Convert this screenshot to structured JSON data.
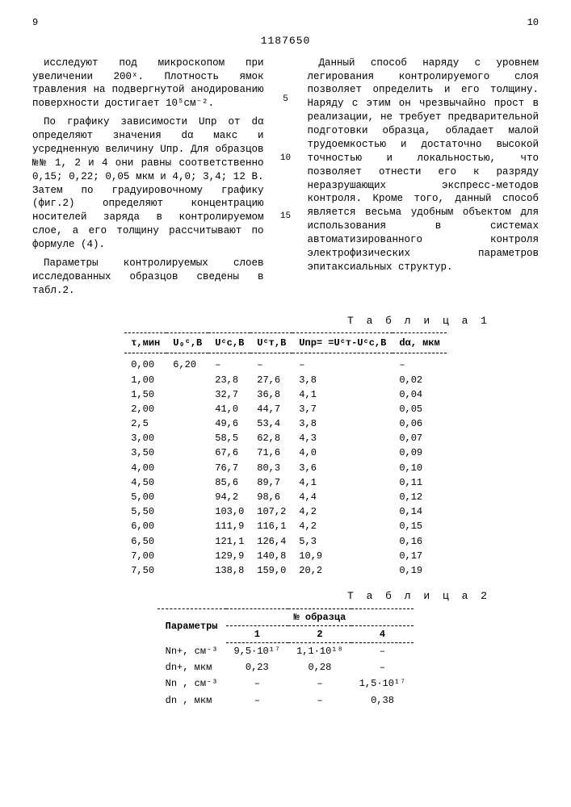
{
  "page_left": "9",
  "page_right": "10",
  "doc_number": "1187650",
  "left_col": {
    "p1": "исследуют под микроскопом при увеличении 200ˣ. Плотность ямок травления на подвергнутой анодированию поверхности достигает 10⁵см⁻².",
    "p2": "По графику зависимости Uпр от dα определяют значения dα макс и усредненную величину Uпр. Для образцов №№ 1, 2 и 4 они равны соответственно 0,15; 0,22; 0,05 мкм и 4,0; 3,4; 12 В. Затем по градуировочному графику (фиг.2) определяют концентрацию носителей заряда в контролируемом слое, а его толщину рассчитывают по формуле (4).",
    "p3": "Параметры контролируемых слоев исследованных образцов сведены в табл.2."
  },
  "right_col": {
    "p1": "Данный способ наряду с уровнем легирования контролируемого слоя позволяет определить и его толщину. Наряду с этим он чрезвычайно прост в реализации, не требует предварительной подготовки образца, обладает малой трудоемкостью и достаточно высокой точностью и локальностью, что позволяет отнести его к разряду неразрушающих экспресс-методов контроля. Кроме того, данный способ является весьма удобным объектом для использования в системах автоматизированного контроля электрофизических параметров эпитаксиальных структур."
  },
  "markers": {
    "m5": "5",
    "m10": "10",
    "m15": "15"
  },
  "table1": {
    "title": "Т а б л и ц а  1",
    "headers": [
      "τ,мин",
      "U₀ᶜ,В",
      "Uᶜc,В",
      "Uᶜт,В",
      "Uпр= =Uᶜт-Uᶜc,В",
      "dα, мкм"
    ],
    "rows": [
      [
        "0,00",
        "6,20",
        "–",
        "–",
        "–",
        "–"
      ],
      [
        "1,00",
        "",
        "23,8",
        "27,6",
        "3,8",
        "0,02"
      ],
      [
        "1,50",
        "",
        "32,7",
        "36,8",
        "4,1",
        "0,04"
      ],
      [
        "2,00",
        "",
        "41,0",
        "44,7",
        "3,7",
        "0,05"
      ],
      [
        "2,5",
        "",
        "49,6",
        "53,4",
        "3,8",
        "0,06"
      ],
      [
        "3,00",
        "",
        "58,5",
        "62,8",
        "4,3",
        "0,07"
      ],
      [
        "3,50",
        "",
        "67,6",
        "71,6",
        "4,0",
        "0,09"
      ],
      [
        "4,00",
        "",
        "76,7",
        "80,3",
        "3,6",
        "0,10"
      ],
      [
        "4,50",
        "",
        "85,6",
        "89,7",
        "4,1",
        "0,11"
      ],
      [
        "5,00",
        "",
        "94,2",
        "98,6",
        "4,4",
        "0,12"
      ],
      [
        "5,50",
        "",
        "103,0",
        "107,2",
        "4,2",
        "0,14"
      ],
      [
        "6,00",
        "",
        "111,9",
        "116,1",
        "4,2",
        "0,15"
      ],
      [
        "6,50",
        "",
        "121,1",
        "126,4",
        "5,3",
        "0,16"
      ],
      [
        "7,00",
        "",
        "129,9",
        "140,8",
        "10,9",
        "0,17"
      ],
      [
        "7,50",
        "",
        "138,8",
        "159,0",
        "20,2",
        "0,19"
      ]
    ]
  },
  "table2": {
    "title": "Т а б л и ц а  2",
    "param_header": "Параметры",
    "sample_header": "№ образца",
    "sample_cols": [
      "1",
      "2",
      "4"
    ],
    "rows": [
      [
        "Nn+, см⁻³",
        "9,5·10¹⁷",
        "1,1·10¹⁸",
        "–"
      ],
      [
        "dn+, мкм",
        "0,23",
        "0,28",
        "–"
      ],
      [
        "Nn , см⁻³",
        "–",
        "–",
        "1,5·10¹⁷"
      ],
      [
        "dn , мкм",
        "–",
        "–",
        "0,38"
      ]
    ]
  },
  "style": {
    "background": "#ffffff",
    "text_color": "#000000",
    "font_family": "Courier New, monospace",
    "body_fontsize": 13,
    "col_fontsize": 12.5,
    "table_fontsize": 12
  }
}
